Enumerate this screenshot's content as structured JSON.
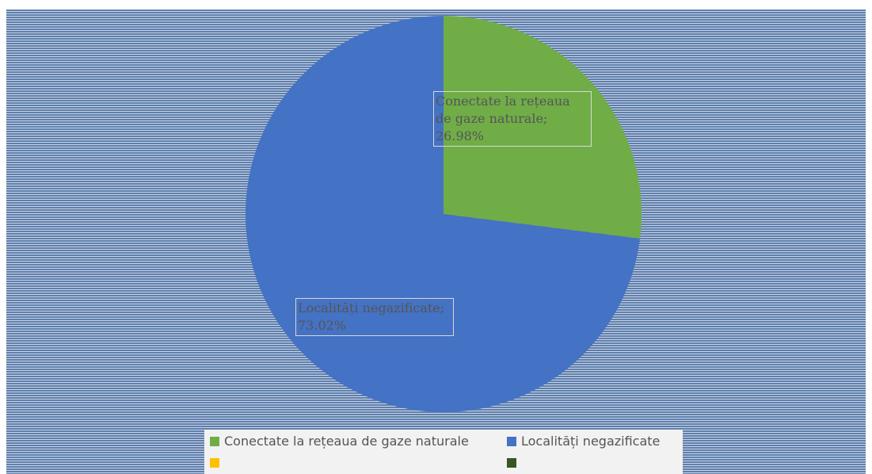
{
  "chart_data": {
    "type": "pie",
    "categories": [
      "Conectate la rețeaua de gaze naturale",
      "Localități negazificate",
      null,
      null
    ],
    "values": [
      26.98,
      73.02,
      null,
      null
    ],
    "value_labels": [
      "Conectate la rețeaua de gaze naturale; 26.98%",
      "Localități negazificate; 73.02%",
      null,
      null
    ],
    "colors": [
      "#70ad47",
      "#4472c4",
      "#ffc000",
      "#375623"
    ],
    "legend": "bottom"
  }
}
